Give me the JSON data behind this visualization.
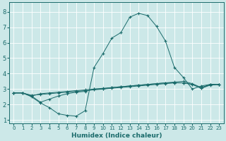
{
  "xlabel": "Humidex (Indice chaleur)",
  "xlim": [
    -0.5,
    23.5
  ],
  "ylim": [
    0.8,
    8.6
  ],
  "yticks": [
    1,
    2,
    3,
    4,
    5,
    6,
    7,
    8
  ],
  "xticks": [
    0,
    1,
    2,
    3,
    4,
    5,
    6,
    7,
    8,
    9,
    10,
    11,
    12,
    13,
    14,
    15,
    16,
    17,
    18,
    19,
    20,
    21,
    22,
    23
  ],
  "bg_color": "#cce8e8",
  "grid_color": "#ffffff",
  "line_color": "#1a6b6b",
  "line1_x": [
    0,
    1,
    2,
    3,
    4,
    5,
    6,
    7,
    8,
    9,
    10,
    11,
    12,
    13,
    14,
    15,
    16,
    17,
    18,
    19,
    20,
    21,
    22,
    23
  ],
  "line1_y": [
    2.75,
    2.75,
    2.5,
    2.1,
    1.8,
    1.4,
    1.3,
    1.25,
    1.6,
    4.4,
    5.3,
    6.3,
    6.65,
    7.65,
    7.9,
    7.75,
    7.05,
    6.1,
    4.4,
    3.75,
    3.0,
    3.2,
    3.3,
    3.3
  ],
  "line2_x": [
    0,
    1,
    2,
    3,
    4,
    5,
    6,
    7,
    8,
    9,
    10,
    11,
    12,
    13,
    14,
    15,
    16,
    17,
    18,
    19,
    20,
    21,
    22,
    23
  ],
  "line2_y": [
    2.75,
    2.75,
    2.55,
    2.7,
    2.75,
    2.8,
    2.85,
    2.9,
    2.95,
    3.0,
    3.05,
    3.1,
    3.15,
    3.2,
    3.25,
    3.3,
    3.35,
    3.4,
    3.45,
    3.5,
    3.35,
    3.1,
    3.3,
    3.3
  ],
  "line3_x": [
    0,
    1,
    2,
    3,
    4,
    5,
    6,
    7,
    8,
    9,
    10,
    11,
    12,
    13,
    14,
    15,
    16,
    17,
    18,
    19,
    20,
    21,
    22,
    23
  ],
  "line3_y": [
    2.75,
    2.75,
    2.6,
    2.65,
    2.7,
    2.75,
    2.8,
    2.85,
    2.9,
    2.95,
    3.0,
    3.05,
    3.1,
    3.15,
    3.2,
    3.25,
    3.3,
    3.35,
    3.4,
    3.4,
    3.3,
    3.05,
    3.25,
    3.3
  ],
  "line4_x": [
    0,
    1,
    2,
    3,
    4,
    5,
    6,
    7,
    8,
    9,
    10,
    11,
    12,
    13,
    14,
    15,
    16,
    17,
    18,
    19,
    20,
    21,
    22,
    23
  ],
  "line4_y": [
    2.75,
    2.75,
    2.55,
    2.15,
    2.35,
    2.55,
    2.7,
    2.8,
    2.85,
    3.0,
    3.0,
    3.1,
    3.15,
    3.2,
    3.25,
    3.3,
    3.35,
    3.4,
    3.4,
    3.4,
    3.3,
    3.05,
    3.3,
    3.3
  ],
  "xlabel_fontsize": 6.5,
  "tick_fontsize_x": 5,
  "tick_fontsize_y": 6
}
